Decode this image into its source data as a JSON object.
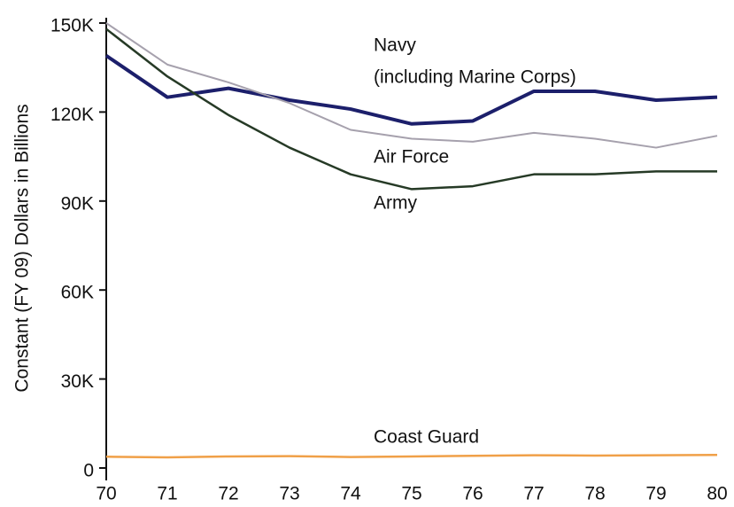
{
  "chart_data": {
    "type": "line",
    "y_axis_label": "Constant (FY 09) Dollars in Billions",
    "x": [
      70,
      71,
      72,
      73,
      74,
      75,
      76,
      77,
      78,
      79,
      80
    ],
    "xlim": [
      70,
      80
    ],
    "xticks": [
      70,
      71,
      72,
      73,
      74,
      75,
      76,
      77,
      78,
      79,
      80
    ],
    "ylim": [
      0,
      150000
    ],
    "yticks": [
      {
        "value": 0,
        "label": "0"
      },
      {
        "value": 30000,
        "label": "30K"
      },
      {
        "value": 60000,
        "label": "60K"
      },
      {
        "value": 90000,
        "label": "90K"
      },
      {
        "value": 120000,
        "label": "120K"
      },
      {
        "value": 150000,
        "label": "150K"
      }
    ],
    "series": [
      {
        "name": "Navy",
        "color": "#1c1f6b",
        "width": 4,
        "values": [
          139000,
          125000,
          128000,
          124000,
          121000,
          116000,
          117000,
          127000,
          127000,
          124000,
          125000
        ]
      },
      {
        "name": "Air Force",
        "color": "#a6a1ad",
        "width": 2,
        "values": [
          150000,
          136000,
          130000,
          123000,
          114000,
          111000,
          110000,
          113000,
          111000,
          108000,
          112000
        ]
      },
      {
        "name": "Army",
        "color": "#263a26",
        "width": 2.5,
        "values": [
          148000,
          132000,
          119000,
          108000,
          99000,
          94000,
          95000,
          99000,
          99000,
          100000,
          100000
        ]
      },
      {
        "name": "Coast Guard",
        "color": "#f0a048",
        "width": 2.5,
        "values": [
          3800,
          3600,
          3900,
          4000,
          3700,
          3900,
          4100,
          4300,
          4200,
          4300,
          4400
        ]
      }
    ],
    "annotations": [
      "(including Marine Corps)"
    ]
  }
}
